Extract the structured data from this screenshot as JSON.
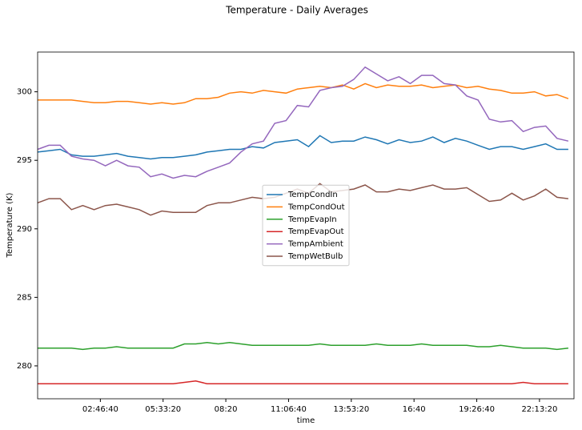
{
  "chart_data": {
    "type": "line",
    "title": "Temperature - Daily Averages",
    "x_label": "time",
    "y_label": "Temperature (K)",
    "x": [
      0,
      1800,
      3600,
      5400,
      7200,
      9000,
      10800,
      12600,
      14400,
      16200,
      18000,
      19800,
      21600,
      23400,
      25200,
      27000,
      28800,
      30600,
      32400,
      34200,
      36000,
      37800,
      39600,
      41400,
      43200,
      45000,
      46800,
      48600,
      50400,
      52200,
      54000,
      55800,
      57600,
      59400,
      61200,
      63000,
      64800,
      66600,
      68400,
      70200,
      72000,
      73800,
      75600,
      77400,
      79200,
      81000,
      82800,
      84600
    ],
    "xlim": [
      0,
      85500
    ],
    "xticks": [
      {
        "value": 10000,
        "label": "02:46:40"
      },
      {
        "value": 20000,
        "label": "05:33:20"
      },
      {
        "value": 30000,
        "label": "08:20"
      },
      {
        "value": 40000,
        "label": "11:06:40"
      },
      {
        "value": 50000,
        "label": "13:53:20"
      },
      {
        "value": 60000,
        "label": "16:40"
      },
      {
        "value": 70000,
        "label": "19:26:40"
      },
      {
        "value": 80000,
        "label": "22:13:20"
      }
    ],
    "ylim": [
      277.6,
      302.9
    ],
    "yticks": [
      280,
      285,
      290,
      295,
      300
    ],
    "grid": false,
    "legend": "center",
    "series": [
      {
        "name": "TempCondIn",
        "color": "#1f77b4",
        "values": [
          295.6,
          295.7,
          295.8,
          295.4,
          295.3,
          295.3,
          295.4,
          295.5,
          295.3,
          295.2,
          295.1,
          295.2,
          295.2,
          295.3,
          295.4,
          295.6,
          295.7,
          295.8,
          295.8,
          296.0,
          295.9,
          296.3,
          296.4,
          296.5,
          296.0,
          296.8,
          296.3,
          296.4,
          296.4,
          296.7,
          296.5,
          296.2,
          296.5,
          296.3,
          296.4,
          296.7,
          296.3,
          296.6,
          296.4,
          296.1,
          295.8,
          296.0,
          296.0,
          295.8,
          296.0,
          296.2,
          295.8,
          295.8
        ]
      },
      {
        "name": "TempCondOut",
        "color": "#ff7f0e",
        "values": [
          299.4,
          299.4,
          299.4,
          299.4,
          299.3,
          299.2,
          299.2,
          299.3,
          299.3,
          299.2,
          299.1,
          299.2,
          299.1,
          299.2,
          299.5,
          299.5,
          299.6,
          299.9,
          300.0,
          299.9,
          300.1,
          300.0,
          299.9,
          300.2,
          300.3,
          300.4,
          300.3,
          300.5,
          300.2,
          300.6,
          300.3,
          300.5,
          300.4,
          300.4,
          300.5,
          300.3,
          300.4,
          300.5,
          300.3,
          300.4,
          300.2,
          300.1,
          299.9,
          299.9,
          300.0,
          299.7,
          299.8,
          299.5
        ]
      },
      {
        "name": "TempEvapIn",
        "color": "#2ca02c",
        "values": [
          281.3,
          281.3,
          281.3,
          281.3,
          281.2,
          281.3,
          281.3,
          281.4,
          281.3,
          281.3,
          281.3,
          281.3,
          281.3,
          281.6,
          281.6,
          281.7,
          281.6,
          281.7,
          281.6,
          281.5,
          281.5,
          281.5,
          281.5,
          281.5,
          281.5,
          281.6,
          281.5,
          281.5,
          281.5,
          281.5,
          281.6,
          281.5,
          281.5,
          281.5,
          281.6,
          281.5,
          281.5,
          281.5,
          281.5,
          281.4,
          281.4,
          281.5,
          281.4,
          281.3,
          281.3,
          281.3,
          281.2,
          281.3
        ]
      },
      {
        "name": "TempEvapOut",
        "color": "#d62728",
        "values": [
          278.7,
          278.7,
          278.7,
          278.7,
          278.7,
          278.7,
          278.7,
          278.7,
          278.7,
          278.7,
          278.7,
          278.7,
          278.7,
          278.8,
          278.9,
          278.7,
          278.7,
          278.7,
          278.7,
          278.7,
          278.7,
          278.7,
          278.7,
          278.7,
          278.7,
          278.7,
          278.7,
          278.7,
          278.7,
          278.7,
          278.7,
          278.7,
          278.7,
          278.7,
          278.7,
          278.7,
          278.7,
          278.7,
          278.7,
          278.7,
          278.7,
          278.7,
          278.7,
          278.8,
          278.7,
          278.7,
          278.7,
          278.7
        ]
      },
      {
        "name": "TempAmbient",
        "color": "#9467bd",
        "values": [
          295.8,
          296.1,
          296.1,
          295.3,
          295.1,
          295.0,
          294.6,
          295.0,
          294.6,
          294.5,
          293.8,
          294.0,
          293.7,
          293.9,
          293.8,
          294.2,
          294.5,
          294.8,
          295.6,
          296.2,
          296.4,
          297.7,
          297.9,
          299.0,
          298.9,
          300.1,
          300.3,
          300.4,
          300.9,
          301.8,
          301.3,
          300.8,
          301.1,
          300.6,
          301.2,
          301.2,
          300.6,
          300.5,
          299.7,
          299.4,
          298.0,
          297.8,
          297.9,
          297.1,
          297.4,
          297.5,
          296.6,
          296.4
        ]
      },
      {
        "name": "TempWetBulb",
        "color": "#8c564b",
        "values": [
          291.9,
          292.2,
          292.2,
          291.4,
          291.7,
          291.4,
          291.7,
          291.8,
          291.6,
          291.4,
          291.0,
          291.3,
          291.2,
          291.2,
          291.2,
          291.7,
          291.9,
          291.9,
          292.1,
          292.3,
          292.2,
          292.3,
          292.6,
          292.9,
          292.6,
          293.3,
          292.7,
          292.8,
          292.9,
          293.2,
          292.7,
          292.7,
          292.9,
          292.8,
          293.0,
          293.2,
          292.9,
          292.9,
          293.0,
          292.5,
          292.0,
          292.1,
          292.6,
          292.1,
          292.4,
          292.9,
          292.3,
          292.2
        ]
      }
    ]
  }
}
